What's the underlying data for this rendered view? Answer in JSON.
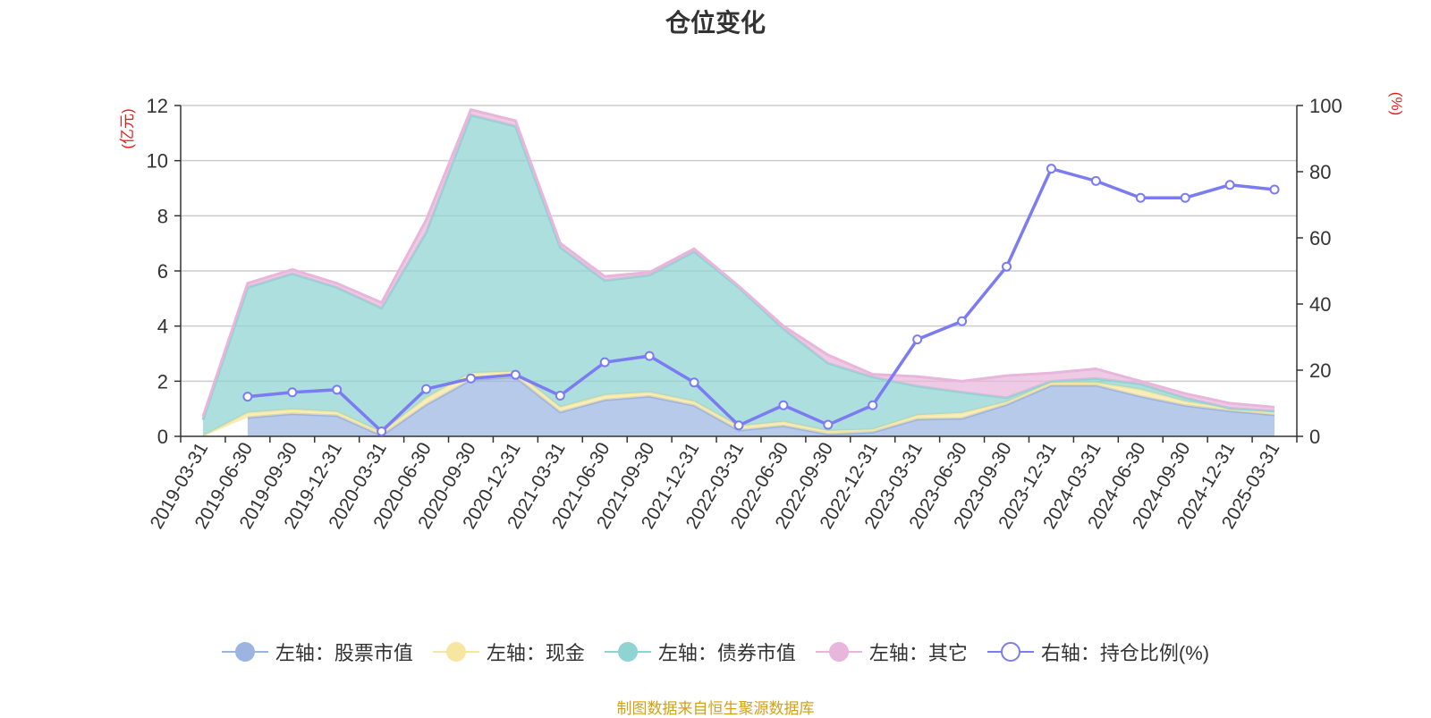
{
  "chart_data": {
    "type": "area",
    "title": "仓位变化",
    "source": "制图数据来自恒生聚源数据库",
    "left_axis": {
      "unit": "(亿元)",
      "range": [
        0,
        12
      ],
      "ticks": [
        0,
        2,
        4,
        6,
        8,
        10,
        12
      ]
    },
    "right_axis": {
      "unit": "(%)",
      "range": [
        0,
        100
      ],
      "ticks": [
        0,
        20,
        40,
        60,
        80,
        100
      ]
    },
    "categories": [
      "2019-03-31",
      "2019-06-30",
      "2019-09-30",
      "2019-12-31",
      "2020-03-31",
      "2020-06-30",
      "2020-09-30",
      "2020-12-31",
      "2021-03-31",
      "2021-06-30",
      "2021-09-30",
      "2021-12-31",
      "2022-03-31",
      "2022-06-30",
      "2022-09-30",
      "2022-12-31",
      "2023-03-31",
      "2023-06-30",
      "2023-09-30",
      "2023-12-31",
      "2024-03-31",
      "2024-06-30",
      "2024-09-30",
      "2024-12-31",
      "2025-03-31"
    ],
    "stacked_series": [
      {
        "name": "左轴：股票市值",
        "color": "#9bb5e0",
        "values": [
          null,
          0.68,
          0.82,
          0.75,
          0.03,
          1.15,
          2.05,
          2.15,
          0.88,
          1.32,
          1.45,
          1.12,
          0.22,
          0.38,
          0.08,
          0.15,
          0.62,
          0.65,
          1.15,
          1.85,
          1.85,
          1.45,
          1.12,
          0.92,
          0.78
        ]
      },
      {
        "name": "左轴：现金",
        "color": "#f7e6a2",
        "values": [
          0.02,
          0.18,
          0.16,
          0.14,
          0.12,
          0.25,
          0.25,
          0.2,
          0.18,
          0.18,
          0.15,
          0.15,
          0.15,
          0.15,
          0.12,
          0.1,
          0.15,
          0.2,
          0.1,
          0.1,
          0.1,
          0.25,
          0.15,
          0.1,
          0.08
        ]
      },
      {
        "name": "左轴：债券市值",
        "color": "#8fd3d3",
        "values": [
          0.58,
          4.54,
          4.92,
          4.51,
          4.5,
          6.0,
          9.35,
          8.9,
          5.8,
          4.15,
          4.25,
          5.43,
          5.03,
          3.37,
          2.45,
          1.9,
          1.05,
          0.75,
          0.15,
          0.05,
          0.15,
          0.2,
          0.13,
          0.0,
          0.06
        ]
      },
      {
        "name": "左轴：其它",
        "color": "#e8b5db",
        "values": [
          0.12,
          0.15,
          0.15,
          0.15,
          0.2,
          0.45,
          0.2,
          0.2,
          0.15,
          0.15,
          0.1,
          0.1,
          0.05,
          0.1,
          0.3,
          0.1,
          0.35,
          0.4,
          0.8,
          0.3,
          0.35,
          0.1,
          0.15,
          0.18,
          0.14
        ]
      }
    ],
    "line_series": {
      "name": "右轴：持仓比例(%)",
      "color": "#7b7bf2",
      "values": [
        null,
        12,
        13.3,
        14.1,
        1.5,
        14.3,
        17.5,
        18.6,
        12.3,
        22.4,
        24.3,
        16.3,
        3.3,
        9.4,
        3.5,
        9.4,
        29.3,
        34.8,
        51.3,
        80.9,
        77.2,
        72.1,
        72.1,
        76,
        74.6
      ]
    }
  }
}
